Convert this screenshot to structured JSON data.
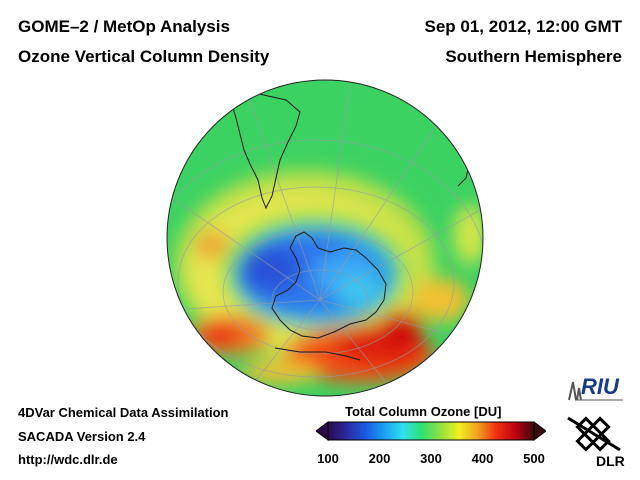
{
  "header": {
    "title_left": "GOME–2 / MetOp Analysis",
    "subtitle_left": "Ozone Vertical Column Density",
    "title_right": "Sep 01, 2012, 12:00 GMT",
    "subtitle_right": "Southern Hemisphere"
  },
  "footer": {
    "line1": "4DVar Chemical Data Assimilation",
    "line2": "SACADA Version 2.4",
    "line3": "http://wdc.dlr.de"
  },
  "colorbar": {
    "title": "Total Column Ozone [DU]",
    "ticks": [
      "100",
      "200",
      "300",
      "400",
      "500"
    ],
    "range": [
      100,
      500
    ],
    "colors": [
      "#2a0a4a",
      "#2a2aa0",
      "#1a5ae0",
      "#1aa0f0",
      "#30e0f0",
      "#30e070",
      "#90e040",
      "#f0f020",
      "#f0a020",
      "#f03010",
      "#c00010",
      "#3a0a0a"
    ]
  },
  "logos": {
    "riu": "RIU",
    "dlr": "DLR"
  },
  "map": {
    "projection": "orthographic-south-polar",
    "colors": {
      "bg": "#3cd262",
      "ocean_green": "#3cd262",
      "yellow": "#e6e650",
      "hole": "#2f7cf0",
      "hole_core": "#3aa6f4",
      "red": "#e83214"
    }
  }
}
